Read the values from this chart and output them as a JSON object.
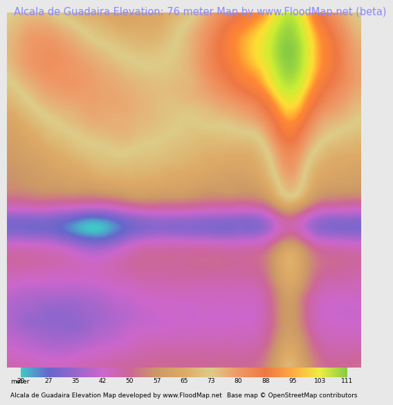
{
  "title": "Alcala de Guadaira Elevation: 76 meter Map by www.FloodMap.net (beta)",
  "title_color": "#8888ff",
  "title_fontsize": 10.5,
  "bg_color": "#e8e8e8",
  "map_bg": "#e0d8c8",
  "colorbar_values": [
    20,
    27,
    35,
    42,
    50,
    57,
    65,
    73,
    80,
    88,
    95,
    103,
    111
  ],
  "colorbar_colors": [
    "#40c8c8",
    "#6666cc",
    "#9966cc",
    "#cc66cc",
    "#cc6699",
    "#cc9966",
    "#ddaa66",
    "#ddcc88",
    "#ee9966",
    "#ee7744",
    "#ffaa44",
    "#eeee44",
    "#88cc44"
  ],
  "footer_left": "Alcala de Guadaira Elevation Map developed by www.FloodMap.net",
  "footer_right": "Base map © OpenStreetMap contributors",
  "footer_fontsize": 6.5,
  "meter_label": "meter",
  "legend_labels": [
    "20",
    "27",
    "35",
    "42",
    "50",
    "57",
    "65",
    "73",
    "80",
    "88",
    "95",
    "103",
    "111"
  ]
}
